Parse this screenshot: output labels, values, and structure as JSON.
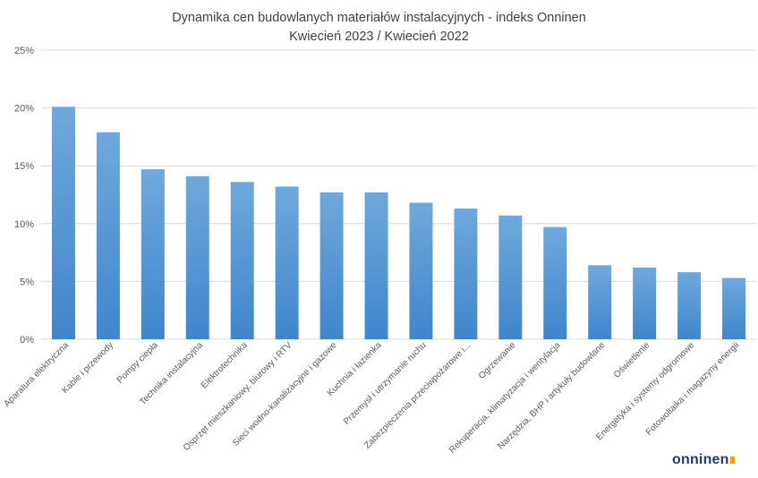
{
  "chart_data": {
    "type": "bar",
    "title": "Dynamika cen budowlanych materiałów instalacyjnych - indeks Onninen",
    "subtitle": "Kwiecień 2023 / Kwiecień 2022",
    "categories": [
      "Aparatura elektryczna",
      "Kable i przewody",
      "Pompy ciepła",
      "Technika instalacyjna",
      "Elektrotechnika",
      "Osprzęt mieszkaniowy, biurowy i RTV",
      "Sieci wodno-kanalizacyjne i gazowe",
      "Kuchnia i łazienka",
      "Przemysł i utrzymanie ruchu",
      "Zabezpieczenia przeciwpożarowe i...",
      "Ogrzewanie",
      "Rekuperacja, klimatyzacja i wentylacja",
      "Narzędzia, BHP i artykuły budowlane",
      "Oświetlenie",
      "Energetyka i systemy odgromowe",
      "Fotowoltaika i magazyny energii"
    ],
    "values": [
      20.1,
      17.9,
      14.7,
      14.1,
      13.6,
      13.2,
      12.7,
      12.7,
      11.8,
      11.3,
      10.7,
      9.7,
      6.4,
      6.2,
      5.8,
      5.3
    ],
    "y_ticks": [
      "0%",
      "5%",
      "10%",
      "15%",
      "20%",
      "25%"
    ],
    "ylim": [
      0,
      25
    ],
    "grid": true,
    "legend": "none",
    "bar_color": "#5b9bd5"
  },
  "logo_text": "onninen",
  "colors": {
    "bar_top": "#6fa8dc",
    "bar_bottom": "#3f86cc",
    "grid": "#d9d9d9",
    "axis_text": "#595959"
  }
}
